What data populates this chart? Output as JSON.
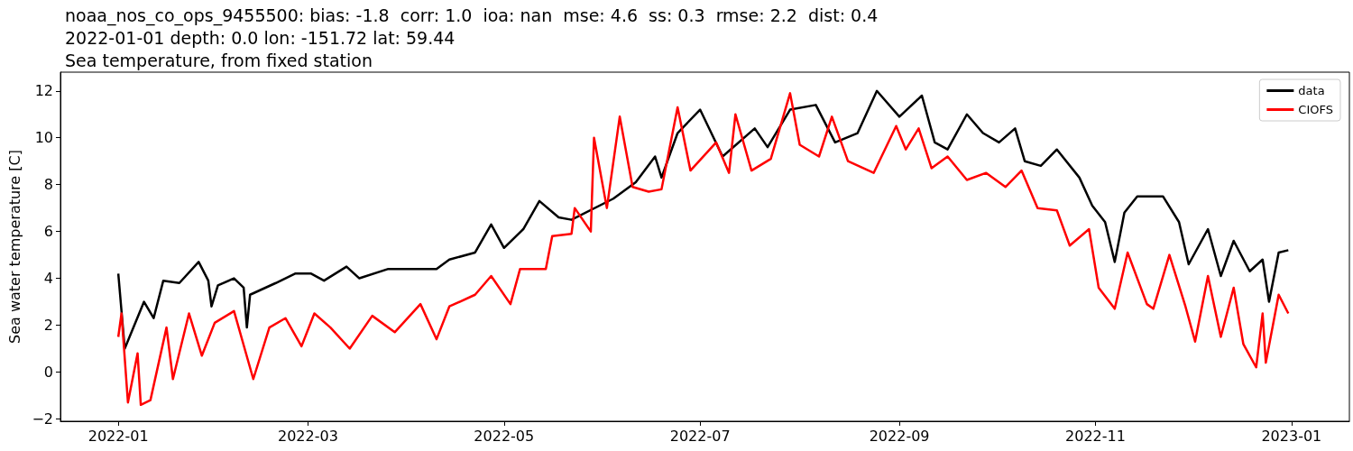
{
  "chart_data": {
    "type": "line",
    "title": "noaa_nos_co_ops_9455500: bias: -1.8  corr: 1.0  ioa: nan  mse: 4.6  ss: 0.3  rmse: 2.2  dist: 0.4",
    "subtitle": "2022-01-01 depth: 0.0 lon: -151.72 lat: 59.44",
    "annotations": [
      "Sea temperature, from fixed station"
    ],
    "ylabel": "Sea water temperature [C]",
    "xlim": [
      "2021-12-14",
      "2023-01-19"
    ],
    "xticks": [
      {
        "value": "2022-01-01",
        "label": "2022-01"
      },
      {
        "value": "2022-03-01",
        "label": "2022-03"
      },
      {
        "value": "2022-05-01",
        "label": "2022-05"
      },
      {
        "value": "2022-07-01",
        "label": "2022-07"
      },
      {
        "value": "2022-09-01",
        "label": "2022-09"
      },
      {
        "value": "2022-11-01",
        "label": "2022-11"
      },
      {
        "value": "2023-01-01",
        "label": "2023-01"
      }
    ],
    "ylim": [
      -2.1,
      12.8
    ],
    "yticks": [
      -2,
      0,
      2,
      4,
      6,
      8,
      10,
      12
    ],
    "grid": false,
    "legend": "top right",
    "marker": "none",
    "line_style": "solid",
    "series": [
      {
        "name": "data",
        "color": "#000000",
        "x": [
          "2022-01-01",
          "2022-01-03",
          "2022-01-09",
          "2022-01-12",
          "2022-01-15",
          "2022-01-20",
          "2022-01-26",
          "2022-01-29",
          "2022-01-30",
          "2022-02-01",
          "2022-02-06",
          "2022-02-09",
          "2022-02-10",
          "2022-02-11",
          "2022-02-19",
          "2022-02-25",
          "2022-03-02",
          "2022-03-06",
          "2022-03-13",
          "2022-03-17",
          "2022-03-26",
          "2022-04-02",
          "2022-04-10",
          "2022-04-14",
          "2022-04-22",
          "2022-04-27",
          "2022-05-01",
          "2022-05-07",
          "2022-05-12",
          "2022-05-18",
          "2022-05-22",
          "2022-06-04",
          "2022-06-11",
          "2022-06-17",
          "2022-06-19",
          "2022-06-24",
          "2022-07-01",
          "2022-07-08",
          "2022-07-18",
          "2022-07-22",
          "2022-07-29",
          "2022-08-06",
          "2022-08-12",
          "2022-08-19",
          "2022-08-25",
          "2022-09-01",
          "2022-09-08",
          "2022-09-12",
          "2022-09-16",
          "2022-09-22",
          "2022-09-27",
          "2022-10-02",
          "2022-10-07",
          "2022-10-10",
          "2022-10-15",
          "2022-10-20",
          "2022-10-27",
          "2022-10-31",
          "2022-11-04",
          "2022-11-07",
          "2022-11-10",
          "2022-11-14",
          "2022-11-22",
          "2022-11-27",
          "2022-11-30",
          "2022-12-06",
          "2022-12-10",
          "2022-12-14",
          "2022-12-19",
          "2022-12-23",
          "2022-12-25",
          "2022-12-28",
          "2022-12-31"
        ],
        "values": [
          4.2,
          1.0,
          3.0,
          2.3,
          3.9,
          3.8,
          4.7,
          3.9,
          2.8,
          3.7,
          4.0,
          3.6,
          1.9,
          3.3,
          3.8,
          4.2,
          4.2,
          3.9,
          4.5,
          4.0,
          4.4,
          4.4,
          4.4,
          4.8,
          5.1,
          6.3,
          5.3,
          6.1,
          7.3,
          6.6,
          6.5,
          7.4,
          8.1,
          9.2,
          8.3,
          10.2,
          11.2,
          9.2,
          10.4,
          9.6,
          11.2,
          11.4,
          9.8,
          10.2,
          12.0,
          10.9,
          11.8,
          9.8,
          9.5,
          11.0,
          10.2,
          9.8,
          10.4,
          9.0,
          8.8,
          9.5,
          8.3,
          7.1,
          6.4,
          4.7,
          6.8,
          7.5,
          7.5,
          6.4,
          4.6,
          6.1,
          4.1,
          5.6,
          4.3,
          4.8,
          3.0,
          5.1,
          5.2
        ]
      },
      {
        "name": "CIOFS",
        "color": "#ff0000",
        "x": [
          "2022-01-01",
          "2022-01-02",
          "2022-01-04",
          "2022-01-07",
          "2022-01-08",
          "2022-01-11",
          "2022-01-16",
          "2022-01-18",
          "2022-01-23",
          "2022-01-27",
          "2022-01-31",
          "2022-02-06",
          "2022-02-12",
          "2022-02-17",
          "2022-02-22",
          "2022-02-27",
          "2022-03-03",
          "2022-03-08",
          "2022-03-14",
          "2022-03-21",
          "2022-03-28",
          "2022-04-05",
          "2022-04-10",
          "2022-04-14",
          "2022-04-22",
          "2022-04-27",
          "2022-05-03",
          "2022-05-06",
          "2022-05-14",
          "2022-05-16",
          "2022-05-22",
          "2022-05-23",
          "2022-05-28",
          "2022-05-29",
          "2022-06-02",
          "2022-06-06",
          "2022-06-10",
          "2022-06-15",
          "2022-06-19",
          "2022-06-24",
          "2022-06-28",
          "2022-07-06",
          "2022-07-10",
          "2022-07-12",
          "2022-07-17",
          "2022-07-23",
          "2022-07-29",
          "2022-08-01",
          "2022-08-07",
          "2022-08-11",
          "2022-08-16",
          "2022-08-24",
          "2022-08-31",
          "2022-09-03",
          "2022-09-07",
          "2022-09-11",
          "2022-09-16",
          "2022-09-22",
          "2022-09-28",
          "2022-10-04",
          "2022-10-09",
          "2022-10-14",
          "2022-10-20",
          "2022-10-24",
          "2022-10-30",
          "2022-11-02",
          "2022-11-07",
          "2022-11-11",
          "2022-11-17",
          "2022-11-19",
          "2022-11-24",
          "2022-11-29",
          "2022-12-02",
          "2022-12-06",
          "2022-12-10",
          "2022-12-14",
          "2022-12-17",
          "2022-12-21",
          "2022-12-23",
          "2022-12-24",
          "2022-12-28",
          "2022-12-31"
        ],
        "values": [
          1.5,
          2.5,
          -1.3,
          0.8,
          -1.4,
          -1.2,
          1.9,
          -0.3,
          2.5,
          0.7,
          2.1,
          2.6,
          -0.3,
          1.9,
          2.3,
          1.1,
          2.5,
          1.9,
          1.0,
          2.4,
          1.7,
          2.9,
          1.4,
          2.8,
          3.3,
          4.1,
          2.9,
          4.4,
          4.4,
          5.8,
          5.9,
          7.0,
          6.0,
          10.0,
          7.0,
          10.9,
          7.9,
          7.7,
          7.8,
          11.3,
          8.6,
          9.8,
          8.5,
          11.0,
          8.6,
          9.1,
          11.9,
          9.7,
          9.2,
          10.9,
          9.0,
          8.5,
          10.5,
          9.5,
          10.4,
          8.7,
          9.2,
          8.2,
          8.5,
          7.9,
          8.6,
          7.0,
          6.9,
          5.4,
          6.1,
          3.6,
          2.7,
          5.1,
          2.9,
          2.7,
          5.0,
          2.8,
          1.3,
          4.1,
          1.5,
          3.6,
          1.2,
          0.2,
          2.5,
          0.4,
          3.3,
          2.5
        ]
      }
    ]
  }
}
